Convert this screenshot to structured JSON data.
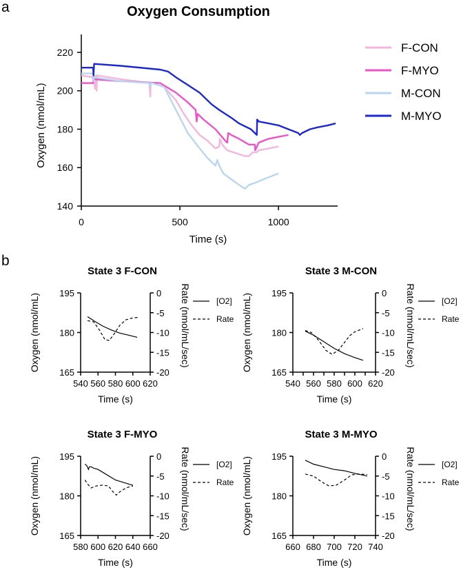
{
  "panel_labels": {
    "a": "a",
    "b": "b"
  },
  "chart_data": [
    {
      "id": "main",
      "type": "line",
      "title": "Oxygen Consumption",
      "xlabel": "Time (s)",
      "ylabel": "Oxygen (nmol/mL)",
      "xlim": [
        0,
        1300
      ],
      "ylim": [
        140,
        225
      ],
      "xticks": [
        0,
        500,
        1000
      ],
      "yticks": [
        140,
        160,
        180,
        200,
        220
      ],
      "legend_position": "right",
      "series": [
        {
          "name": "F-CON",
          "color": "#f4b6dc",
          "x": [
            0,
            60,
            70,
            75,
            78,
            80,
            200,
            345,
            350,
            352,
            360,
            420,
            480,
            520,
            560,
            600,
            640,
            680,
            700,
            702,
            715,
            740,
            800,
            830,
            850,
            870,
            880,
            890,
            900,
            950,
            1000
          ],
          "y": [
            208,
            207,
            201,
            208,
            200,
            208,
            206,
            204,
            197,
            204,
            204,
            202,
            195,
            188,
            182,
            177,
            174,
            170,
            171,
            175,
            172,
            169,
            167,
            166,
            166,
            168,
            168,
            168,
            169,
            170,
            171
          ]
        },
        {
          "name": "F-MYO",
          "color": "#ee52c8",
          "x": [
            0,
            60,
            62,
            65,
            200,
            400,
            480,
            540,
            580,
            585,
            590,
            620,
            680,
            730,
            740,
            745,
            760,
            800,
            850,
            880,
            882,
            900,
            950,
            1000,
            1050
          ],
          "y": [
            204,
            204,
            209,
            206,
            205,
            204,
            199,
            194,
            190,
            184,
            188,
            185,
            180,
            174,
            173,
            178,
            177,
            175,
            172,
            172,
            169,
            173,
            175,
            176,
            177
          ]
        },
        {
          "name": "M-CON",
          "color": "#b9d6f0",
          "x": [
            0,
            60,
            62,
            65,
            200,
            345,
            350,
            352,
            360,
            420,
            480,
            540,
            600,
            640,
            680,
            690,
            700,
            720,
            760,
            800,
            830,
            850,
            880,
            950,
            1000
          ],
          "y": [
            209,
            209,
            205,
            207,
            205,
            204,
            202,
            204,
            204,
            202,
            190,
            178,
            170,
            165,
            161,
            164,
            161,
            157,
            154,
            151,
            149,
            151,
            152,
            155,
            157
          ]
        },
        {
          "name": "M-MYO",
          "color": "#1a27d3",
          "x": [
            0,
            60,
            62,
            65,
            200,
            400,
            440,
            480,
            540,
            600,
            660,
            700,
            760,
            800,
            860,
            890,
            892,
            900,
            950,
            1000,
            1050,
            1100,
            1108,
            1120,
            1160,
            1200,
            1250,
            1290
          ],
          "y": [
            212,
            212,
            208,
            214,
            213,
            211,
            210,
            207,
            203,
            199,
            193,
            190,
            186,
            183,
            180,
            177,
            185,
            184,
            183,
            182,
            180,
            178,
            177,
            178,
            180,
            181,
            182,
            183
          ]
        }
      ]
    },
    {
      "id": "state3-fcon",
      "type": "line",
      "title": "State 3 F-CON",
      "xlabel": "Time (s)",
      "ylabel": "Oxygen (nmol/mL)",
      "y2label": "Rate (nmol/mL/sec)",
      "xlim": [
        540,
        620
      ],
      "ylim": [
        165,
        195
      ],
      "y2lim": [
        -20,
        0
      ],
      "xticks": [
        540,
        560,
        580,
        600,
        620
      ],
      "yticks": [
        165,
        180,
        195
      ],
      "y2ticks": [
        0,
        -5,
        -10,
        -15,
        -20
      ],
      "series": [
        {
          "name": "[O2]",
          "style": "solid",
          "axis": "left",
          "x": [
            548,
            555,
            565,
            575,
            585,
            595,
            605
          ],
          "y": [
            186,
            184.5,
            182.5,
            181,
            179.8,
            179,
            178.2
          ]
        },
        {
          "name": "Rate",
          "style": "dashed",
          "axis": "right",
          "x": [
            548,
            555,
            562,
            568,
            573,
            578,
            585,
            592,
            600,
            606
          ],
          "y": [
            -7,
            -7.3,
            -9.5,
            -11.8,
            -12,
            -10.5,
            -8.2,
            -6.8,
            -6.3,
            -6.2
          ]
        }
      ]
    },
    {
      "id": "state3-mcon",
      "type": "line",
      "title": "State 3 M-CON",
      "xlabel": "Time (s)",
      "ylabel": "Oxygen (nmol/mL)",
      "y2label": "Rate (nmol/mL/sec)",
      "xlim": [
        540,
        620
      ],
      "ylim": [
        165,
        195
      ],
      "y2lim": [
        -20,
        0
      ],
      "xticks": [
        540,
        550,
        560,
        570,
        580,
        590,
        600,
        610,
        620
      ],
      "xtick_labels": [
        "540",
        "",
        "560",
        "",
        "580",
        "",
        "600",
        "",
        "620"
      ],
      "yticks": [
        165,
        180,
        195
      ],
      "y2ticks": [
        0,
        -5,
        -10,
        -15,
        -20
      ],
      "series": [
        {
          "name": "[O2]",
          "style": "solid",
          "axis": "left",
          "x": [
            552,
            560,
            570,
            580,
            590,
            600,
            608
          ],
          "y": [
            180.5,
            179,
            176.5,
            174,
            172,
            170.5,
            169.5
          ]
        },
        {
          "name": "Rate",
          "style": "dashed",
          "axis": "right",
          "x": [
            552,
            558,
            565,
            572,
            578,
            584,
            590,
            595,
            600,
            608
          ],
          "y": [
            -9.5,
            -10,
            -12,
            -14.5,
            -15.5,
            -14.5,
            -12.5,
            -10.8,
            -9.8,
            -9
          ]
        }
      ]
    },
    {
      "id": "state3-fmyo",
      "type": "line",
      "title": "State 3 F-MYO",
      "xlabel": "Time (s)",
      "ylabel": "Oxygen (nmol/mL)",
      "y2label": "Rate (nmol/mL/sec)",
      "xlim": [
        580,
        660
      ],
      "ylim": [
        165,
        195
      ],
      "y2lim": [
        -20,
        0
      ],
      "xticks": [
        580,
        600,
        620,
        640,
        660
      ],
      "yticks": [
        165,
        180,
        195
      ],
      "y2ticks": [
        0,
        -5,
        -10,
        -15,
        -20
      ],
      "series": [
        {
          "name": "[O2]",
          "style": "solid",
          "axis": "left",
          "x": [
            585,
            587,
            589,
            590,
            592,
            595,
            600,
            610,
            620,
            630,
            640
          ],
          "y": [
            192,
            191.5,
            190,
            191,
            191,
            190.5,
            190,
            188,
            186,
            185,
            184
          ]
        },
        {
          "name": "Rate",
          "style": "dashed",
          "axis": "right",
          "x": [
            585,
            588,
            592,
            598,
            605,
            612,
            618,
            621,
            625,
            632,
            640
          ],
          "y": [
            -6,
            -7,
            -8,
            -7.5,
            -7.3,
            -7.5,
            -9.2,
            -9.8,
            -9,
            -8,
            -7.5
          ]
        }
      ]
    },
    {
      "id": "state3-mmyo",
      "type": "line",
      "title": "State 3 M-MYO",
      "xlabel": "Time (s)",
      "ylabel": "Oxygen (nmol/mL)",
      "y2label": "Rate (nmol/mL/sec)",
      "xlim": [
        660,
        740
      ],
      "ylim": [
        165,
        195
      ],
      "y2lim": [
        -20,
        0
      ],
      "xticks": [
        660,
        680,
        700,
        720,
        740
      ],
      "yticks": [
        165,
        180,
        195
      ],
      "y2ticks": [
        0,
        -5,
        -10,
        -15,
        -20
      ],
      "series": [
        {
          "name": "[O2]",
          "style": "solid",
          "axis": "left",
          "x": [
            672,
            680,
            690,
            700,
            710,
            720,
            732
          ],
          "y": [
            193.5,
            192,
            191,
            190,
            189.5,
            188.5,
            187.5
          ]
        },
        {
          "name": "Rate",
          "style": "dashed",
          "axis": "right",
          "x": [
            672,
            680,
            688,
            695,
            702,
            710,
            717,
            723,
            732
          ],
          "y": [
            -4.5,
            -5,
            -6.5,
            -7.5,
            -7.3,
            -6,
            -4.7,
            -4.5,
            -4.6
          ]
        }
      ]
    }
  ]
}
